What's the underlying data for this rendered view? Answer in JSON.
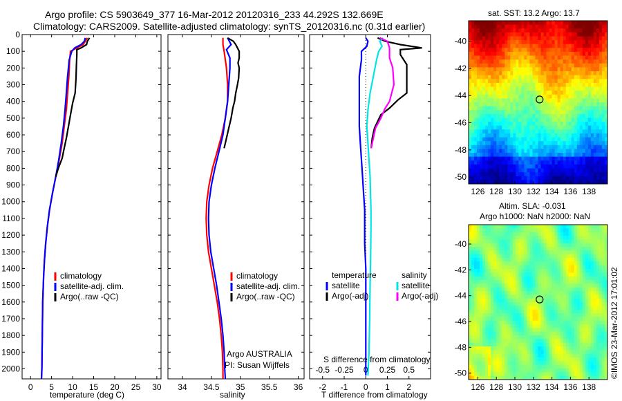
{
  "title": {
    "line1": "Argo profile: CS 5903649_377 16-Mar-2012 20120316_233 44.292S 132.669E",
    "line2": "Climatology: CARS2009. Satellite-adjusted climatology: synTS_20120316.nc (0.31d earlier)"
  },
  "colors": {
    "climatology": "#ff0000",
    "satellite": "#0000ff",
    "argo": "#000000",
    "cyan": "#00e5e5",
    "magenta": "#ff00ff"
  },
  "depth_ticks": [
    "0",
    "100",
    "200",
    "300",
    "400",
    "500",
    "600",
    "700",
    "800",
    "900",
    "1000",
    "1100",
    "1200",
    "1300",
    "1400",
    "1500",
    "1600",
    "1700",
    "1800",
    "1900",
    "2000"
  ],
  "chart_data": [
    {
      "type": "line",
      "xlabel": "temperature (deg C)",
      "xlim": [
        -2,
        31
      ],
      "ylim": [
        2060,
        0
      ],
      "xticks": [
        "0",
        "5",
        "10",
        "15",
        "20",
        "25",
        "30"
      ],
      "legend": [
        "climatology",
        "satellite-adj. clim.",
        "Argo(..raw -QC)"
      ],
      "series": [
        {
          "name": "climatology",
          "color": "#ff0000",
          "points": [
            [
              13.5,
              20
            ],
            [
              13,
              40
            ],
            [
              12.5,
              60
            ],
            [
              11,
              80
            ],
            [
              9.5,
              100
            ],
            [
              9.3,
              150
            ],
            [
              9.1,
              250
            ],
            [
              8.8,
              350
            ],
            [
              8.5,
              450
            ],
            [
              8,
              550
            ],
            [
              7.5,
              650
            ],
            [
              6.8,
              750
            ],
            [
              6,
              850
            ],
            [
              5.2,
              950
            ],
            [
              4.5,
              1050
            ],
            [
              4,
              1150
            ],
            [
              3.6,
              1250
            ],
            [
              3.3,
              1350
            ],
            [
              3.1,
              1450
            ],
            [
              2.9,
              1600
            ],
            [
              2.8,
              1800
            ],
            [
              2.7,
              2000
            ],
            [
              2.6,
              2060
            ]
          ]
        },
        {
          "name": "satellite-adj. clim.",
          "color": "#0000ff",
          "points": [
            [
              13,
              20
            ],
            [
              12.8,
              40
            ],
            [
              12,
              60
            ],
            [
              10.5,
              80
            ],
            [
              9.8,
              100
            ],
            [
              9.2,
              150
            ],
            [
              8.8,
              250
            ],
            [
              8.5,
              350
            ],
            [
              8.2,
              450
            ],
            [
              7.8,
              550
            ],
            [
              7.3,
              650
            ],
            [
              6.7,
              750
            ],
            [
              6,
              850
            ],
            [
              5.2,
              950
            ],
            [
              4.5,
              1050
            ],
            [
              4,
              1150
            ],
            [
              3.6,
              1250
            ],
            [
              3.3,
              1350
            ],
            [
              3.1,
              1450
            ],
            [
              2.9,
              1600
            ],
            [
              2.8,
              1800
            ],
            [
              2.7,
              2000
            ],
            [
              2.6,
              2060
            ]
          ]
        },
        {
          "name": "Argo(..raw -QC)",
          "color": "#000000",
          "points": [
            [
              14,
              20
            ],
            [
              13.5,
              40
            ],
            [
              13.3,
              60
            ],
            [
              12,
              80
            ],
            [
              11,
              90
            ],
            [
              11,
              120
            ],
            [
              10.9,
              180
            ],
            [
              10.8,
              260
            ],
            [
              10.6,
              350
            ],
            [
              10,
              410
            ],
            [
              9.5,
              480
            ],
            [
              9,
              550
            ],
            [
              8.5,
              620
            ],
            [
              8,
              680
            ],
            [
              7.5,
              740
            ],
            [
              6.6,
              800
            ],
            [
              6,
              850
            ]
          ]
        }
      ]
    },
    {
      "type": "line",
      "xlabel": "salinity",
      "xlim": [
        33.75,
        36.1
      ],
      "ylim": [
        2060,
        0
      ],
      "xticks": [
        "34",
        "34.5",
        "35",
        "35.5",
        "36"
      ],
      "legend": [
        "climatology",
        "satellite-adj. clim.",
        "Argo(..raw -QC)"
      ],
      "annotation": [
        "Argo AUSTRALIA",
        "PI: Susan Wijffels"
      ],
      "series": [
        {
          "name": "climatology",
          "color": "#ff0000",
          "points": [
            [
              34.7,
              20
            ],
            [
              34.7,
              60
            ],
            [
              34.72,
              100
            ],
            [
              34.76,
              200
            ],
            [
              34.78,
              300
            ],
            [
              34.78,
              400
            ],
            [
              34.74,
              500
            ],
            [
              34.68,
              600
            ],
            [
              34.6,
              700
            ],
            [
              34.52,
              800
            ],
            [
              34.46,
              900
            ],
            [
              34.42,
              1000
            ],
            [
              34.41,
              1100
            ],
            [
              34.42,
              1200
            ],
            [
              34.45,
              1300
            ],
            [
              34.5,
              1400
            ],
            [
              34.55,
              1500
            ],
            [
              34.6,
              1600
            ],
            [
              34.64,
              1700
            ],
            [
              34.67,
              1800
            ],
            [
              34.69,
              1900
            ],
            [
              34.7,
              2000
            ],
            [
              34.7,
              2060
            ]
          ]
        },
        {
          "name": "satellite-adj. clim.",
          "color": "#0000ff",
          "points": [
            [
              34.78,
              20
            ],
            [
              34.84,
              60
            ],
            [
              34.76,
              90
            ],
            [
              34.82,
              140
            ],
            [
              34.82,
              200
            ],
            [
              34.8,
              300
            ],
            [
              34.78,
              400
            ],
            [
              34.74,
              500
            ],
            [
              34.7,
              600
            ],
            [
              34.63,
              700
            ],
            [
              34.56,
              800
            ],
            [
              34.5,
              900
            ],
            [
              34.46,
              1000
            ],
            [
              34.45,
              1100
            ],
            [
              34.46,
              1200
            ],
            [
              34.49,
              1300
            ],
            [
              34.54,
              1400
            ],
            [
              34.59,
              1500
            ],
            [
              34.63,
              1600
            ],
            [
              34.67,
              1700
            ],
            [
              34.7,
              1800
            ],
            [
              34.72,
              1900
            ],
            [
              34.73,
              2000
            ],
            [
              34.74,
              2060
            ]
          ]
        },
        {
          "name": "Argo(..raw -QC)",
          "color": "#000000",
          "points": [
            [
              34.78,
              20
            ],
            [
              34.88,
              40
            ],
            [
              34.92,
              60
            ],
            [
              34.98,
              100
            ],
            [
              34.98,
              140
            ],
            [
              34.96,
              170
            ],
            [
              34.98,
              200
            ],
            [
              34.97,
              260
            ],
            [
              34.95,
              300
            ],
            [
              34.92,
              350
            ],
            [
              34.9,
              400
            ],
            [
              34.87,
              440
            ],
            [
              34.84,
              500
            ],
            [
              34.8,
              560
            ],
            [
              34.76,
              620
            ],
            [
              34.72,
              680
            ]
          ]
        }
      ]
    },
    {
      "type": "line",
      "xlabel": "T difference from climatology",
      "top_label": "S difference from climatology",
      "xlim": [
        -2.6,
        3.0
      ],
      "ylim": [
        2060,
        0
      ],
      "xticks": [
        "-2",
        "-1",
        "0",
        "1",
        "2"
      ],
      "top_ticks": [
        "-0.5",
        "-0.25",
        "0",
        "0.25",
        "0.5"
      ],
      "legend_temperature": {
        "title": "temperature",
        "items": [
          "satellite",
          "Argo(-adj)"
        ]
      },
      "legend_salinity": {
        "title": "salinity",
        "items": [
          "satellite",
          "Argo(-adj)"
        ]
      },
      "series": [
        {
          "name": "temperature satellite",
          "color": "#0000ff",
          "points": [
            [
              0,
              20
            ],
            [
              0.1,
              40
            ],
            [
              0.05,
              70
            ],
            [
              -0.2,
              100
            ],
            [
              -0.2,
              150
            ],
            [
              -0.3,
              250
            ],
            [
              -0.3,
              350
            ],
            [
              -0.3,
              450
            ],
            [
              -0.3,
              550
            ],
            [
              -0.25,
              650
            ],
            [
              -0.2,
              750
            ],
            [
              -0.15,
              850
            ],
            [
              -0.1,
              950
            ],
            [
              -0.05,
              1050
            ],
            [
              -0.05,
              1150
            ],
            [
              -0.05,
              1250
            ],
            [
              0,
              1400
            ],
            [
              0,
              1600
            ],
            [
              0,
              1800
            ],
            [
              0,
              2000
            ],
            [
              0,
              2040
            ]
          ]
        },
        {
          "name": "temperature Argo(-adj)",
          "color": "#000000",
          "points": [
            [
              0.55,
              20
            ],
            [
              0.9,
              40
            ],
            [
              1.6,
              60
            ],
            [
              2.6,
              80
            ],
            [
              1.6,
              90
            ],
            [
              1.6,
              120
            ],
            [
              1.9,
              180
            ],
            [
              1.9,
              260
            ],
            [
              1.9,
              350
            ],
            [
              1.5,
              390
            ],
            [
              1.1,
              440
            ],
            [
              0.7,
              480
            ],
            [
              0.4,
              560
            ],
            [
              0.3,
              620
            ],
            [
              0.25,
              680
            ]
          ]
        },
        {
          "name": "salinity satellite",
          "color": "#00e5e5",
          "points": [
            [
              0.8,
              20
            ],
            [
              0.65,
              40
            ],
            [
              0.75,
              70
            ],
            [
              0.6,
              100
            ],
            [
              0.5,
              150
            ],
            [
              0.35,
              250
            ],
            [
              0.2,
              350
            ],
            [
              0.1,
              450
            ],
            [
              0.05,
              550
            ],
            [
              0.1,
              650
            ],
            [
              0.15,
              750
            ],
            [
              0.2,
              850
            ],
            [
              0.22,
              950
            ],
            [
              0.24,
              1050
            ],
            [
              0.24,
              1150
            ],
            [
              0.23,
              1300
            ],
            [
              0.2,
              1500
            ],
            [
              0.18,
              1700
            ],
            [
              0.15,
              1900
            ],
            [
              0.1,
              2040
            ]
          ]
        },
        {
          "name": "salinity Argo(-adj)",
          "color": "#ff00ff",
          "points": [
            [
              0.65,
              20
            ],
            [
              1.0,
              40
            ],
            [
              1.1,
              80
            ],
            [
              1.1,
              140
            ],
            [
              1.25,
              200
            ],
            [
              1.3,
              300
            ],
            [
              1.1,
              400
            ],
            [
              0.9,
              440
            ],
            [
              0.7,
              500
            ],
            [
              0.45,
              560
            ],
            [
              0.35,
              620
            ],
            [
              0.25,
              680
            ]
          ]
        }
      ]
    },
    {
      "type": "heatmap",
      "title": "sat. SST: 13.2 Argo: 13.7",
      "xticks": [
        "126",
        "128",
        "130",
        "132",
        "134",
        "136",
        "138"
      ],
      "yticks": [
        "-40",
        "-42",
        "-44",
        "-46",
        "-48",
        "-50"
      ],
      "xlim": [
        125,
        140
      ],
      "ylim": [
        -50.5,
        -38.5
      ],
      "marker": {
        "lon": 132.669,
        "lat": -44.292
      },
      "colormap": "jet"
    },
    {
      "type": "heatmap",
      "title": [
        "Altim. SLA: -0.031",
        "Argo h1000: NaN h2000: NaN"
      ],
      "xticks": [
        "126",
        "128",
        "130",
        "132",
        "134",
        "136",
        "138"
      ],
      "yticks": [
        "-40",
        "-42",
        "-44",
        "-46",
        "-48",
        "-50"
      ],
      "xlim": [
        125,
        140
      ],
      "ylim": [
        -50.5,
        -38.5
      ],
      "marker": {
        "lon": 132.669,
        "lat": -44.292
      },
      "colormap": "jet"
    }
  ],
  "stamp": "©IMOS 23-Mar-2012 17:01:02"
}
